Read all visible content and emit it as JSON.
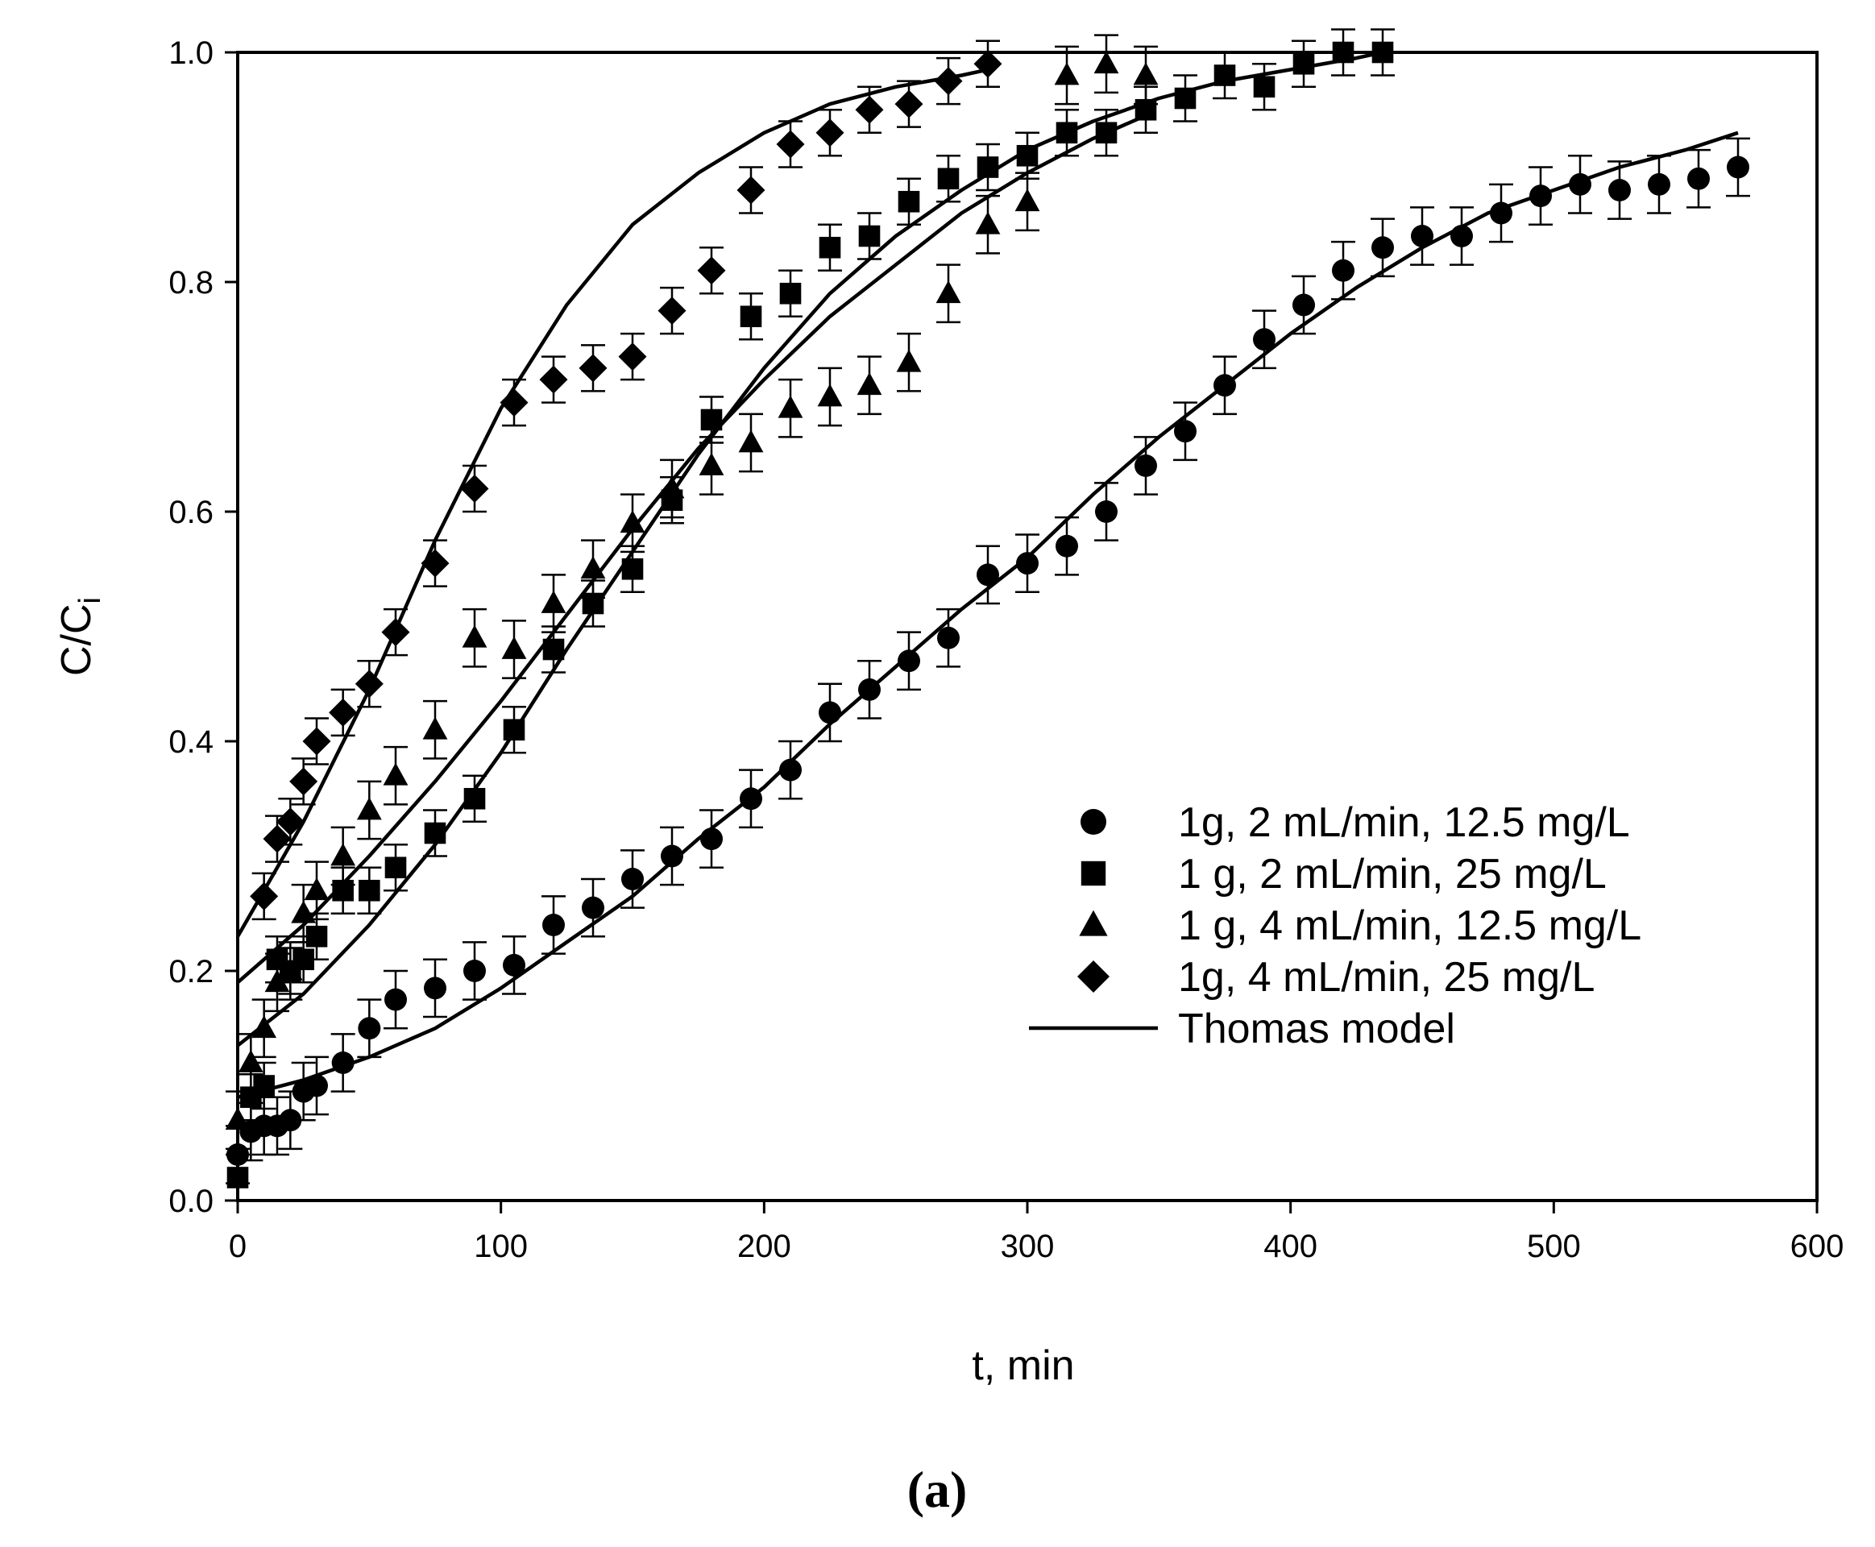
{
  "chart_data": {
    "type": "scatter",
    "title": "",
    "xlabel": "t, min",
    "ylabel_main": "C/C",
    "ylabel_sub": "i",
    "xlim": [
      0,
      600
    ],
    "ylim": [
      0.0,
      1.0
    ],
    "xticks": [
      "0",
      "100",
      "200",
      "300",
      "400",
      "500",
      "600"
    ],
    "yticks": [
      "0.0",
      "0.2",
      "0.4",
      "0.6",
      "0.8",
      "1.0"
    ],
    "panel_label": "(a)",
    "legend": {
      "position": "bottom-right",
      "entries": [
        "1g, 2 mL/min, 12.5 mg/L",
        "1 g, 2 mL/min, 25 mg/L",
        "1 g, 4 mL/min, 12.5 mg/L",
        "1g, 4 mL/min, 25 mg/L",
        "Thomas model"
      ]
    },
    "series": [
      {
        "name": "1g, 2 mL/min, 12.5 mg/L",
        "marker": "circle",
        "x": [
          0,
          5,
          10,
          15,
          20,
          25,
          30,
          40,
          50,
          60,
          75,
          90,
          105,
          120,
          135,
          150,
          165,
          180,
          195,
          210,
          225,
          240,
          255,
          270,
          285,
          300,
          315,
          330,
          345,
          360,
          375,
          390,
          405,
          420,
          435,
          450,
          465,
          480,
          495,
          510,
          525,
          540,
          555,
          570
        ],
        "y": [
          0.04,
          0.06,
          0.065,
          0.065,
          0.07,
          0.095,
          0.1,
          0.12,
          0.15,
          0.175,
          0.185,
          0.2,
          0.205,
          0.24,
          0.255,
          0.28,
          0.3,
          0.315,
          0.35,
          0.375,
          0.425,
          0.445,
          0.47,
          0.49,
          0.545,
          0.555,
          0.57,
          0.6,
          0.64,
          0.67,
          0.71,
          0.75,
          0.78,
          0.81,
          0.83,
          0.84,
          0.84,
          0.86,
          0.875,
          0.885,
          0.88,
          0.885,
          0.89,
          0.9
        ],
        "err": 0.025
      },
      {
        "name": "1 g, 2 mL/min, 25 mg/L",
        "marker": "square",
        "x": [
          0,
          5,
          10,
          15,
          20,
          25,
          30,
          40,
          50,
          60,
          75,
          90,
          105,
          120,
          135,
          150,
          165,
          180,
          195,
          210,
          225,
          240,
          255,
          270,
          285,
          300,
          315,
          330,
          345,
          360,
          375,
          390,
          405,
          420,
          435
        ],
        "y": [
          0.02,
          0.09,
          0.1,
          0.21,
          0.2,
          0.21,
          0.23,
          0.27,
          0.27,
          0.29,
          0.32,
          0.35,
          0.41,
          0.48,
          0.52,
          0.55,
          0.61,
          0.68,
          0.77,
          0.79,
          0.83,
          0.84,
          0.87,
          0.89,
          0.9,
          0.91,
          0.93,
          0.93,
          0.95,
          0.96,
          0.98,
          0.97,
          0.99,
          1.0,
          1.0
        ],
        "err": 0.02
      },
      {
        "name": "1 g, 4 mL/min, 12.5 mg/L",
        "marker": "triangle",
        "x": [
          0,
          5,
          10,
          15,
          20,
          25,
          30,
          40,
          50,
          60,
          75,
          90,
          105,
          120,
          135,
          150,
          165,
          180,
          195,
          210,
          225,
          240,
          255,
          270,
          285,
          300,
          315,
          330,
          345
        ],
        "y": [
          0.07,
          0.12,
          0.15,
          0.19,
          0.2,
          0.25,
          0.27,
          0.3,
          0.34,
          0.37,
          0.41,
          0.49,
          0.48,
          0.52,
          0.55,
          0.59,
          0.62,
          0.64,
          0.66,
          0.69,
          0.7,
          0.71,
          0.73,
          0.79,
          0.85,
          0.87,
          0.98,
          0.99,
          0.98
        ],
        "err": 0.025
      },
      {
        "name": "1g, 4 mL/min, 25 mg/L",
        "marker": "diamond",
        "x": [
          10,
          15,
          20,
          25,
          30,
          40,
          50,
          60,
          75,
          90,
          105,
          120,
          135,
          150,
          165,
          180,
          195,
          210,
          225,
          240,
          255,
          270,
          285
        ],
        "y": [
          0.265,
          0.315,
          0.33,
          0.365,
          0.4,
          0.425,
          0.45,
          0.495,
          0.555,
          0.62,
          0.695,
          0.715,
          0.725,
          0.735,
          0.775,
          0.81,
          0.88,
          0.92,
          0.93,
          0.95,
          0.955,
          0.975,
          0.99
        ],
        "err": 0.02
      }
    ],
    "model_curves": [
      {
        "name": "Thomas model (1g, 2 mL/min, 12.5 mg/L)",
        "x": [
          0,
          25,
          50,
          75,
          100,
          125,
          150,
          175,
          200,
          225,
          250,
          275,
          300,
          325,
          350,
          375,
          400,
          425,
          450,
          475,
          500,
          525,
          550,
          570
        ],
        "y": [
          0.09,
          0.105,
          0.125,
          0.15,
          0.185,
          0.225,
          0.265,
          0.315,
          0.36,
          0.415,
          0.465,
          0.515,
          0.56,
          0.615,
          0.665,
          0.71,
          0.755,
          0.795,
          0.83,
          0.86,
          0.88,
          0.9,
          0.915,
          0.93
        ]
      },
      {
        "name": "Thomas model (1 g, 2 mL/min, 25 mg/L)",
        "x": [
          0,
          25,
          50,
          75,
          100,
          125,
          150,
          175,
          200,
          225,
          250,
          275,
          300,
          325,
          350,
          375,
          400,
          425,
          435
        ],
        "y": [
          0.135,
          0.18,
          0.24,
          0.31,
          0.39,
          0.48,
          0.565,
          0.65,
          0.725,
          0.79,
          0.84,
          0.88,
          0.915,
          0.94,
          0.96,
          0.975,
          0.985,
          0.995,
          1.0
        ]
      },
      {
        "name": "Thomas model (1 g, 4 mL/min, 12.5 mg/L)",
        "x": [
          0,
          25,
          50,
          75,
          100,
          125,
          150,
          175,
          200,
          225,
          250,
          275,
          300,
          325,
          345
        ],
        "y": [
          0.19,
          0.24,
          0.3,
          0.365,
          0.435,
          0.51,
          0.585,
          0.655,
          0.715,
          0.77,
          0.815,
          0.86,
          0.895,
          0.925,
          0.945
        ]
      },
      {
        "name": "Thomas model (1g, 4 mL/min, 25 mg/L)",
        "x": [
          0,
          25,
          50,
          75,
          100,
          125,
          150,
          175,
          200,
          225,
          250,
          275,
          285
        ],
        "y": [
          0.23,
          0.33,
          0.445,
          0.575,
          0.69,
          0.78,
          0.85,
          0.895,
          0.93,
          0.955,
          0.97,
          0.98,
          0.985
        ]
      }
    ]
  }
}
